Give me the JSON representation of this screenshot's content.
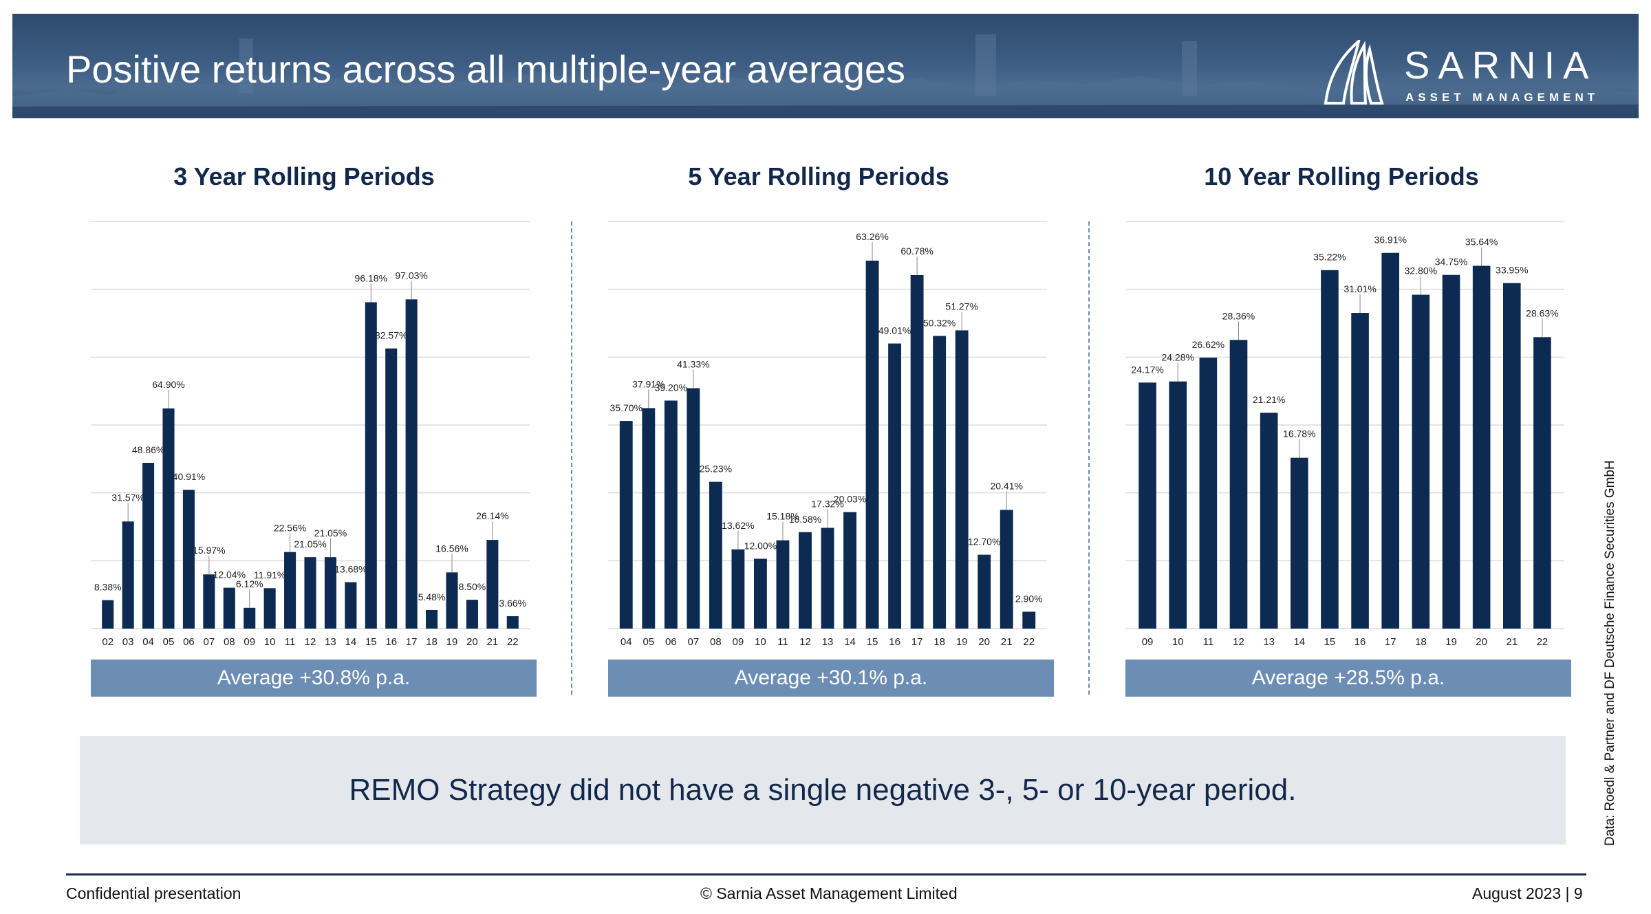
{
  "header": {
    "title": "Positive returns across all multiple-year averages",
    "logo_word": "SARNIA",
    "logo_sub": "ASSET MANAGEMENT",
    "banner_color": "#3d5c82"
  },
  "colors": {
    "bar": "#0d2a52",
    "average_box": "#6c8db4",
    "callout_bg": "#e4e8ec",
    "gridline": "#dcdcdc"
  },
  "chart_data": [
    {
      "type": "bar",
      "title": "3 Year Rolling Periods",
      "categories": [
        "02",
        "03",
        "04",
        "05",
        "06",
        "07",
        "08",
        "09",
        "10",
        "11",
        "12",
        "13",
        "14",
        "15",
        "16",
        "17",
        "18",
        "19",
        "20",
        "21",
        "22"
      ],
      "values": [
        8.38,
        31.57,
        48.86,
        64.9,
        40.91,
        15.97,
        12.04,
        6.12,
        11.91,
        22.56,
        21.05,
        21.05,
        13.68,
        96.18,
        82.57,
        97.03,
        5.48,
        16.56,
        8.5,
        26.14,
        3.66
      ],
      "labels": [
        "8.38%",
        "31.57%",
        "48.86%",
        "64.90%",
        "40.91%",
        "15.97%",
        "12.04%",
        "6.12%",
        "11.91%",
        "22.56%",
        "21.05%",
        "21.05%",
        "13.68%",
        "96.18%",
        "82.57%",
        "97.03%",
        "5.48%",
        "16.56%",
        "8.50%",
        "26.14%",
        "3.66%"
      ],
      "ylim": [
        0,
        120
      ],
      "grid": true,
      "average": "Average +30.8% p.a."
    },
    {
      "type": "bar",
      "title": "5 Year Rolling Periods",
      "categories": [
        "04",
        "05",
        "06",
        "07",
        "08",
        "09",
        "10",
        "11",
        "12",
        "13",
        "14",
        "15",
        "16",
        "17",
        "18",
        "19",
        "20",
        "21",
        "22"
      ],
      "values": [
        35.7,
        37.91,
        39.2,
        41.33,
        25.23,
        13.62,
        12.0,
        15.18,
        16.58,
        17.32,
        20.03,
        63.26,
        49.01,
        60.78,
        50.32,
        51.27,
        12.7,
        20.41,
        2.9
      ],
      "labels": [
        "35.70%",
        "37.91%",
        "39.20%",
        "41.33%",
        "25.23%",
        "13.62%",
        "12.00%",
        "15.18%",
        "16.58%",
        "17.32%",
        "20.03%",
        "63.26%",
        "49.01%",
        "60.78%",
        "50.32%",
        "51.27%",
        "12.70%",
        "20.41%",
        "2.90%"
      ],
      "ylim": [
        0,
        70
      ],
      "grid": true,
      "average": "Average +30.1% p.a."
    },
    {
      "type": "bar",
      "title": "10 Year Rolling Periods",
      "categories": [
        "09",
        "10",
        "11",
        "12",
        "13",
        "14",
        "15",
        "16",
        "17",
        "18",
        "19",
        "20",
        "21",
        "22"
      ],
      "values": [
        24.17,
        24.28,
        26.62,
        28.36,
        21.21,
        16.78,
        35.22,
        31.01,
        36.91,
        32.8,
        34.75,
        35.64,
        33.95,
        28.63
      ],
      "labels": [
        "24.17%",
        "24.28%",
        "26.62%",
        "28.36%",
        "21.21%",
        "16.78%",
        "35.22%",
        "31.01%",
        "36.91%",
        "32.80%",
        "34.75%",
        "35.64%",
        "33.95%",
        "28.63%"
      ],
      "ylim": [
        0,
        40
      ],
      "grid": true,
      "average": "Average +28.5% p.a."
    }
  ],
  "callout": "REMO Strategy did not have a single negative 3-, 5- or 10-year period.",
  "footer": {
    "left": "Confidential presentation",
    "center": "© Sarnia Asset Management Limited",
    "right": "August 2023  |  9"
  },
  "source": "Data: Roedl & Partner and DF Deutsche Finance Securities GmbH"
}
